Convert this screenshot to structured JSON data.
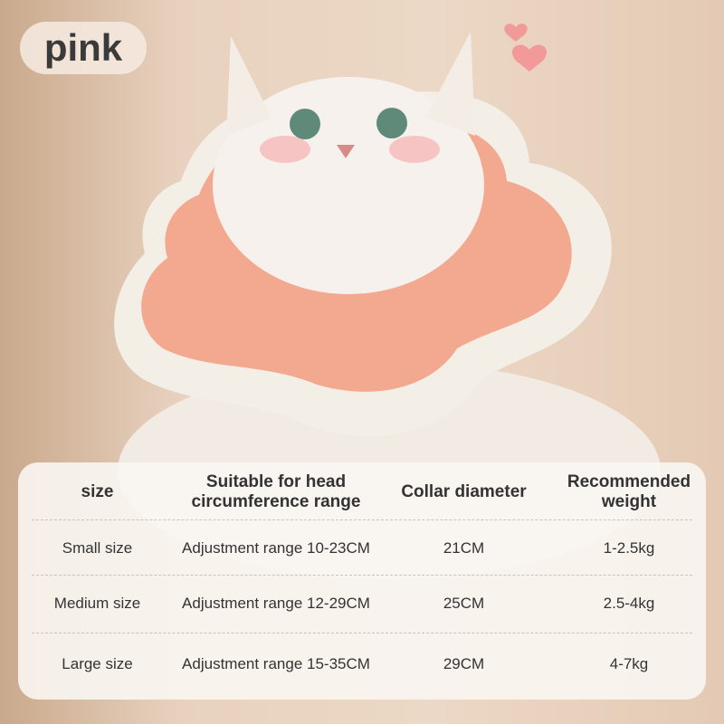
{
  "badge": {
    "label": "pink"
  },
  "table": {
    "headers": [
      "size",
      "Suitable for head circumference range",
      "Collar diameter",
      "Recommended weight"
    ],
    "rows": [
      [
        "Small size",
        "Adjustment range 10-23CM",
        "21CM",
        "1-2.5kg"
      ],
      [
        "Medium size",
        "Adjustment range 12-29CM",
        "25CM",
        "2.5-4kg"
      ],
      [
        "Large size",
        "Adjustment range 15-35CM",
        "29CM",
        "4-7kg"
      ]
    ]
  },
  "colors": {
    "collar_pink": "#f3a98f",
    "collar_cream": "#f4efe6",
    "heart": "#f29a9a"
  }
}
